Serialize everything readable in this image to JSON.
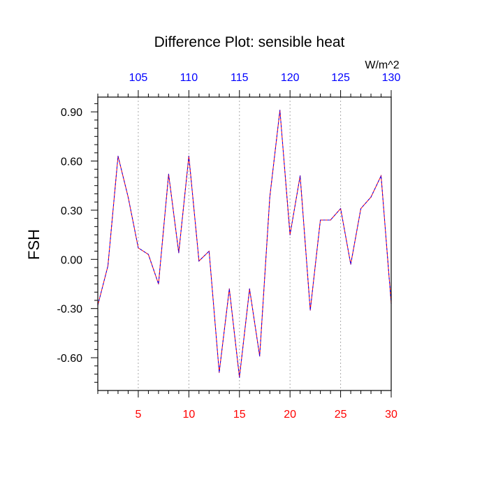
{
  "chart_data": {
    "type": "line",
    "title": "Difference Plot: sensible heat",
    "ylabel": "FSH",
    "units": "W/m^2",
    "x": [
      1,
      2,
      3,
      4,
      5,
      6,
      7,
      8,
      9,
      10,
      11,
      12,
      13,
      14,
      15,
      16,
      17,
      18,
      19,
      20,
      21,
      22,
      23,
      24,
      25,
      26,
      27,
      28,
      29,
      30
    ],
    "values": [
      -0.28,
      -0.04,
      0.63,
      0.38,
      0.07,
      0.03,
      -0.15,
      0.52,
      0.04,
      0.63,
      -0.01,
      0.05,
      -0.69,
      -0.18,
      -0.72,
      -0.18,
      -0.59,
      0.38,
      0.91,
      0.15,
      0.51,
      -0.31,
      0.24,
      0.24,
      0.31,
      -0.03,
      0.31,
      0.38,
      0.51,
      -0.27
    ],
    "xlim": [
      1,
      30
    ],
    "ylim": [
      -0.8,
      0.99
    ],
    "bottom_axis": {
      "ticks": [
        5,
        10,
        15,
        20,
        25,
        30
      ],
      "tick_labels": [
        "5",
        "10",
        "15",
        "20",
        "25",
        "30"
      ],
      "color": "#ff0000"
    },
    "top_axis": {
      "ticks": [
        105,
        110,
        115,
        120,
        125,
        130
      ],
      "tick_labels": [
        "105",
        "110",
        "115",
        "120",
        "125",
        "130"
      ],
      "offset": 100,
      "color": "#0000ff"
    },
    "left_axis": {
      "ticks": [
        -0.6,
        -0.3,
        0.0,
        0.3,
        0.6,
        0.9
      ],
      "tick_labels": [
        "-0.60",
        "-0.30",
        "0.00",
        "0.30",
        "0.60",
        "0.90"
      ],
      "color": "#000000"
    },
    "grid": "vertical dashed",
    "line_colors": [
      "#0000ff",
      "#ff0000"
    ],
    "line_style": "dashed"
  }
}
